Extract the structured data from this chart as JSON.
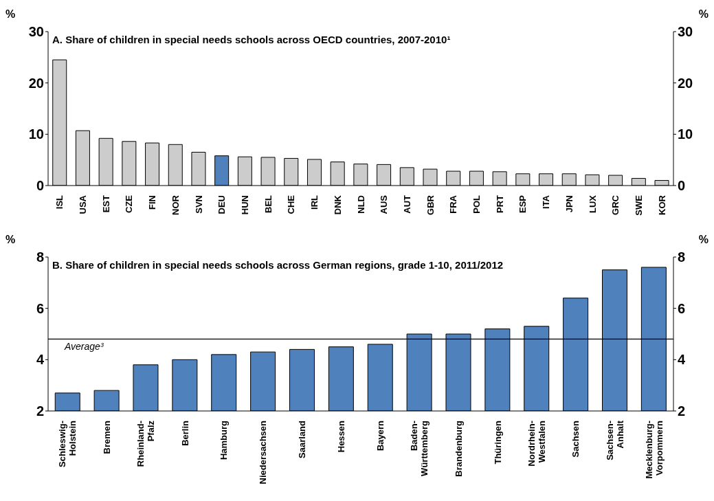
{
  "chart_data": [
    {
      "type": "bar",
      "title": "A. Share of children in special needs schools across OECD countries, 2007-2010¹",
      "ylabel": "%",
      "y2label": "%",
      "categories": [
        "ISL",
        "USA",
        "EST",
        "CZE",
        "FIN",
        "NOR",
        "SVN",
        "DEU",
        "HUN",
        "BEL",
        "CHE",
        "IRL",
        "DNK",
        "NLD",
        "AUS",
        "AUT",
        "GBR",
        "FRA",
        "POL",
        "PRT",
        "ESP",
        "ITA",
        "JPN",
        "LUX",
        "GRC",
        "SWE",
        "KOR"
      ],
      "values": [
        24.5,
        10.7,
        9.2,
        8.6,
        8.3,
        8.0,
        6.5,
        5.8,
        5.6,
        5.5,
        5.3,
        5.1,
        4.6,
        4.2,
        4.1,
        3.5,
        3.2,
        2.8,
        2.8,
        2.7,
        2.3,
        2.3,
        2.3,
        2.1,
        2.0,
        1.4,
        1.0
      ],
      "colors": [
        "#cccccc",
        "#cccccc",
        "#cccccc",
        "#cccccc",
        "#cccccc",
        "#cccccc",
        "#cccccc",
        "#4f81bd",
        "#cccccc",
        "#cccccc",
        "#cccccc",
        "#cccccc",
        "#cccccc",
        "#cccccc",
        "#cccccc",
        "#cccccc",
        "#cccccc",
        "#cccccc",
        "#cccccc",
        "#cccccc",
        "#cccccc",
        "#cccccc",
        "#cccccc",
        "#cccccc",
        "#cccccc",
        "#cccccc",
        "#cccccc"
      ],
      "ylim": [
        0,
        30
      ],
      "yticks": [
        0,
        10,
        20,
        30
      ],
      "y2lim": [
        0,
        30
      ],
      "y2ticks": [
        0,
        10,
        20,
        30
      ]
    },
    {
      "type": "bar",
      "title": "B. Share of children in special needs schools across German regions, grade 1-10, 2011/2012",
      "ylabel": "%",
      "y2label": "%",
      "categories": [
        "Schleswig-Holstein",
        "Bremen",
        "Rheinland-Pfalz",
        "Berlin",
        "Hamburg",
        "Niedersachsen",
        "Saarland",
        "Hessen",
        "Bayern",
        "Baden-Württemberg",
        "Brandenburg",
        "Thüringen",
        "Nordrhein-Westfalen",
        "Sachsen",
        "Sachsen-Anhalt",
        "Mecklenburg-Vorpommern"
      ],
      "values": [
        2.7,
        2.8,
        3.8,
        4.0,
        4.2,
        4.3,
        4.4,
        4.5,
        4.6,
        5.0,
        5.0,
        5.2,
        5.3,
        6.4,
        7.5,
        7.6
      ],
      "color": "#4f81bd",
      "ylim": [
        2,
        8
      ],
      "yticks": [
        2,
        4,
        6,
        8
      ],
      "y2lim": [
        2,
        8
      ],
      "y2ticks": [
        2,
        4,
        6,
        8
      ],
      "ref_lines": [
        {
          "axis": "y",
          "value": 4.8,
          "label": "Average³"
        }
      ]
    }
  ]
}
